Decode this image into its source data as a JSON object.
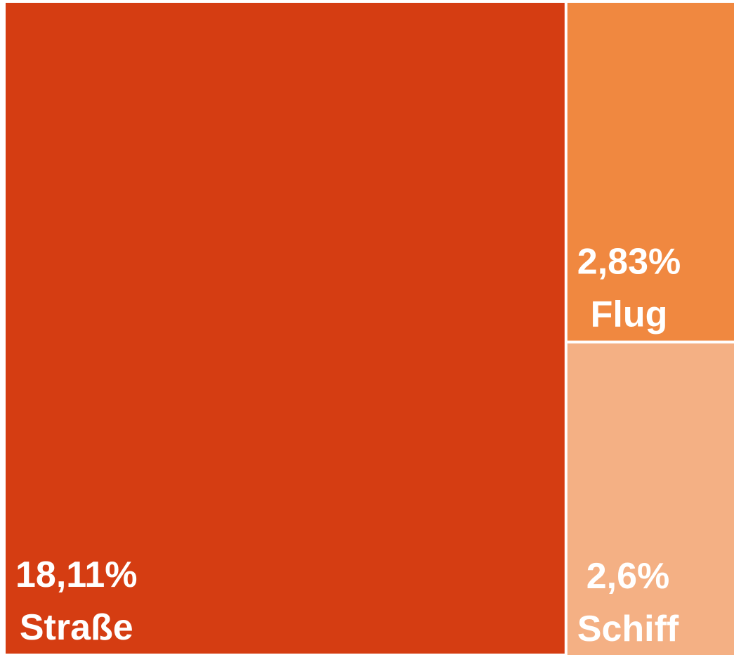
{
  "chart_data": {
    "type": "treemap",
    "categories": [
      "Straße",
      "Flug",
      "Schiff"
    ],
    "values": [
      18.11,
      2.83,
      2.6
    ],
    "value_labels": [
      "18,11%",
      "2,83%",
      "2,6%"
    ],
    "colors": [
      "#d53d12",
      "#f08840",
      "#f4b084"
    ]
  }
}
